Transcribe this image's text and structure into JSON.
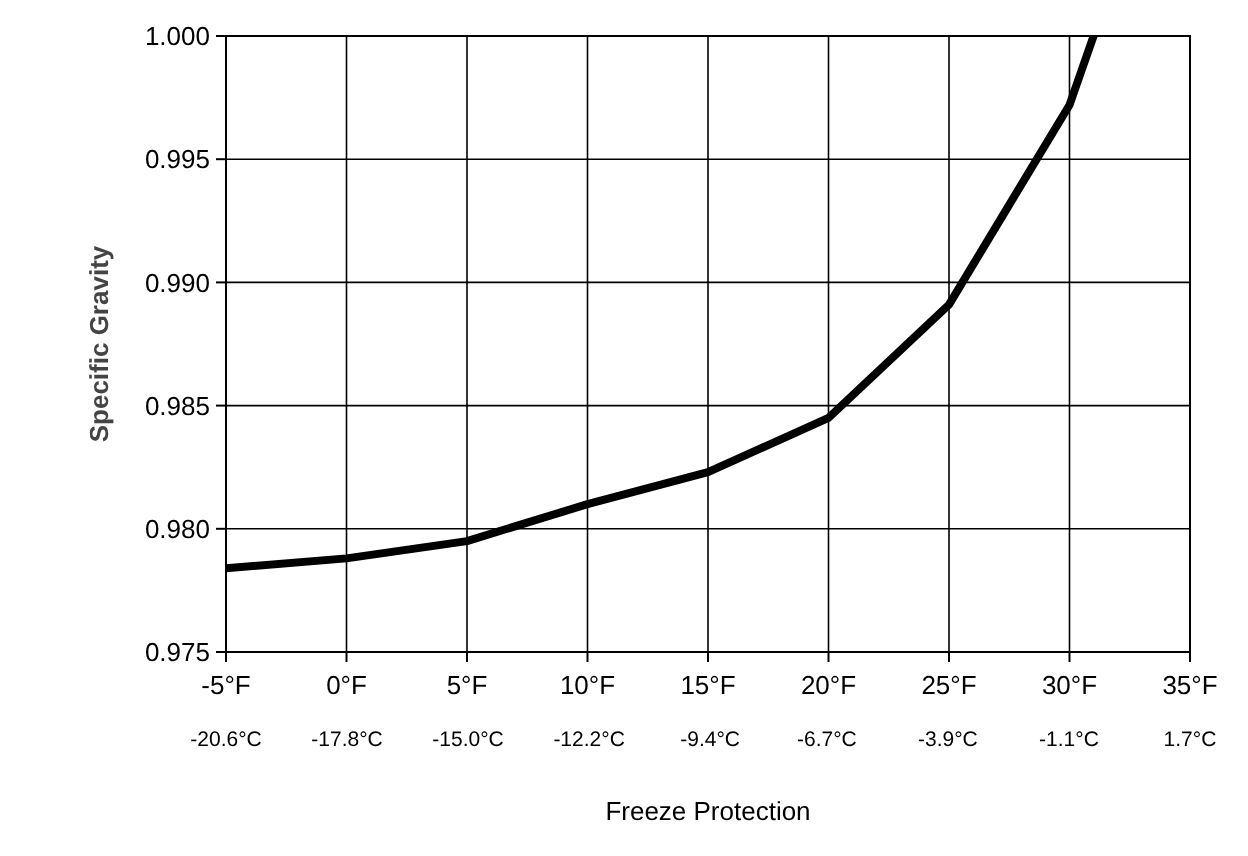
{
  "chart_data": {
    "type": "line",
    "xlabel": "Freeze Protection",
    "ylabel": "Specific Gravity",
    "x": [
      -5,
      0,
      5,
      10,
      15,
      20,
      25,
      30,
      31
    ],
    "series": [
      {
        "color": "#000000",
        "values": [
          0.9784,
          0.9788,
          0.9795,
          0.981,
          0.9823,
          0.9845,
          0.9891,
          0.9972,
          1.0
        ]
      }
    ],
    "xlim": [
      -5,
      35
    ],
    "ylim": [
      0.975,
      1.0
    ],
    "xticks": [
      {
        "value": -5,
        "label": "-5°F"
      },
      {
        "value": 0,
        "label": "0°F"
      },
      {
        "value": 5,
        "label": "5°F"
      },
      {
        "value": 10,
        "label": "10°F"
      },
      {
        "value": 15,
        "label": "15°F"
      },
      {
        "value": 20,
        "label": "20°F"
      },
      {
        "value": 25,
        "label": "25°F"
      },
      {
        "value": 30,
        "label": "30°F"
      },
      {
        "value": 35,
        "label": "35°F"
      }
    ],
    "x2lim": [
      -20.6,
      1.7
    ],
    "x2ticks": [
      {
        "value": -20.6,
        "label": "-20.6°C"
      },
      {
        "value": -17.8,
        "label": "-17.8°C"
      },
      {
        "value": -15.0,
        "label": "-15.0°C"
      },
      {
        "value": -12.2,
        "label": "-12.2°C"
      },
      {
        "value": -9.4,
        "label": "-9.4°C"
      },
      {
        "value": -6.7,
        "label": "-6.7°C"
      },
      {
        "value": -3.9,
        "label": "-3.9°C"
      },
      {
        "value": -1.1,
        "label": "-1.1°C"
      },
      {
        "value": 1.7,
        "label": "1.7°C"
      }
    ],
    "yticks": [
      {
        "value": 0.975,
        "label": "0.975"
      },
      {
        "value": 0.98,
        "label": "0.980"
      },
      {
        "value": 0.985,
        "label": "0.985"
      },
      {
        "value": 0.99,
        "label": "0.990"
      },
      {
        "value": 0.995,
        "label": "0.995"
      },
      {
        "value": 1.0,
        "label": "1.000"
      }
    ],
    "grid": true,
    "marker": "none",
    "line_style": "solid"
  }
}
